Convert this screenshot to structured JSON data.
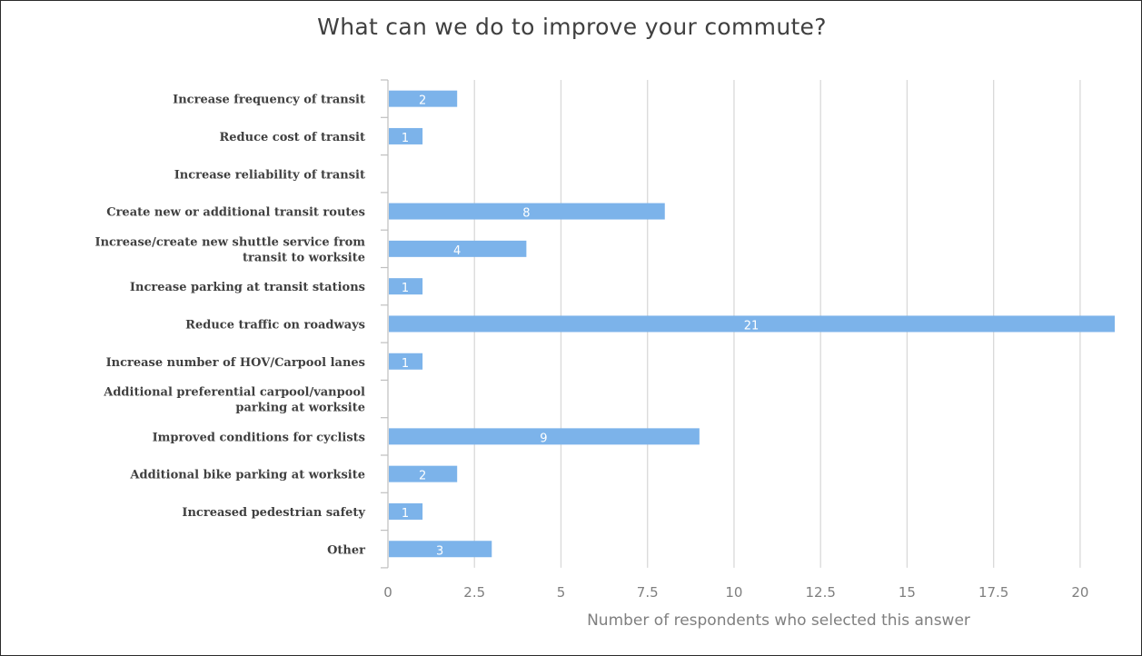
{
  "chart_data": {
    "type": "bar",
    "orientation": "horizontal",
    "title": "What can we do to improve your commute?",
    "xlabel": "Number of respondents who selected this answer",
    "ylabel": "",
    "xlim": [
      0,
      21
    ],
    "ticks": [
      "0",
      "2.5",
      "5",
      "7.5",
      "10",
      "12.5",
      "15",
      "17.5",
      "20"
    ],
    "tick_values": [
      0,
      2.5,
      5,
      7.5,
      10,
      12.5,
      15,
      17.5,
      20
    ],
    "grid": true,
    "legend": "none",
    "bar_color": "#7cb3ea",
    "categories": [
      [
        "Increase frequency of transit"
      ],
      [
        "Reduce cost of transit"
      ],
      [
        "Increase reliability of transit"
      ],
      [
        "Create new or additional transit routes"
      ],
      [
        "Increase/create new shuttle service from",
        "transit to worksite"
      ],
      [
        "Increase parking at transit stations"
      ],
      [
        "Reduce traffic on roadways"
      ],
      [
        "Increase number of HOV/Carpool lanes"
      ],
      [
        "Additional preferential carpool/vanpool",
        "parking at worksite"
      ],
      [
        "Improved conditions for cyclists"
      ],
      [
        "Additional bike parking at worksite"
      ],
      [
        "Increased pedestrian safety"
      ],
      [
        "Other"
      ]
    ],
    "values": [
      2,
      1,
      0,
      8,
      4,
      1,
      21,
      1,
      0,
      9,
      2,
      1,
      3
    ],
    "data_labels": [
      "2",
      "1",
      "",
      "8",
      "4",
      "1",
      "21",
      "1",
      "",
      "9",
      "2",
      "1",
      "3"
    ]
  }
}
